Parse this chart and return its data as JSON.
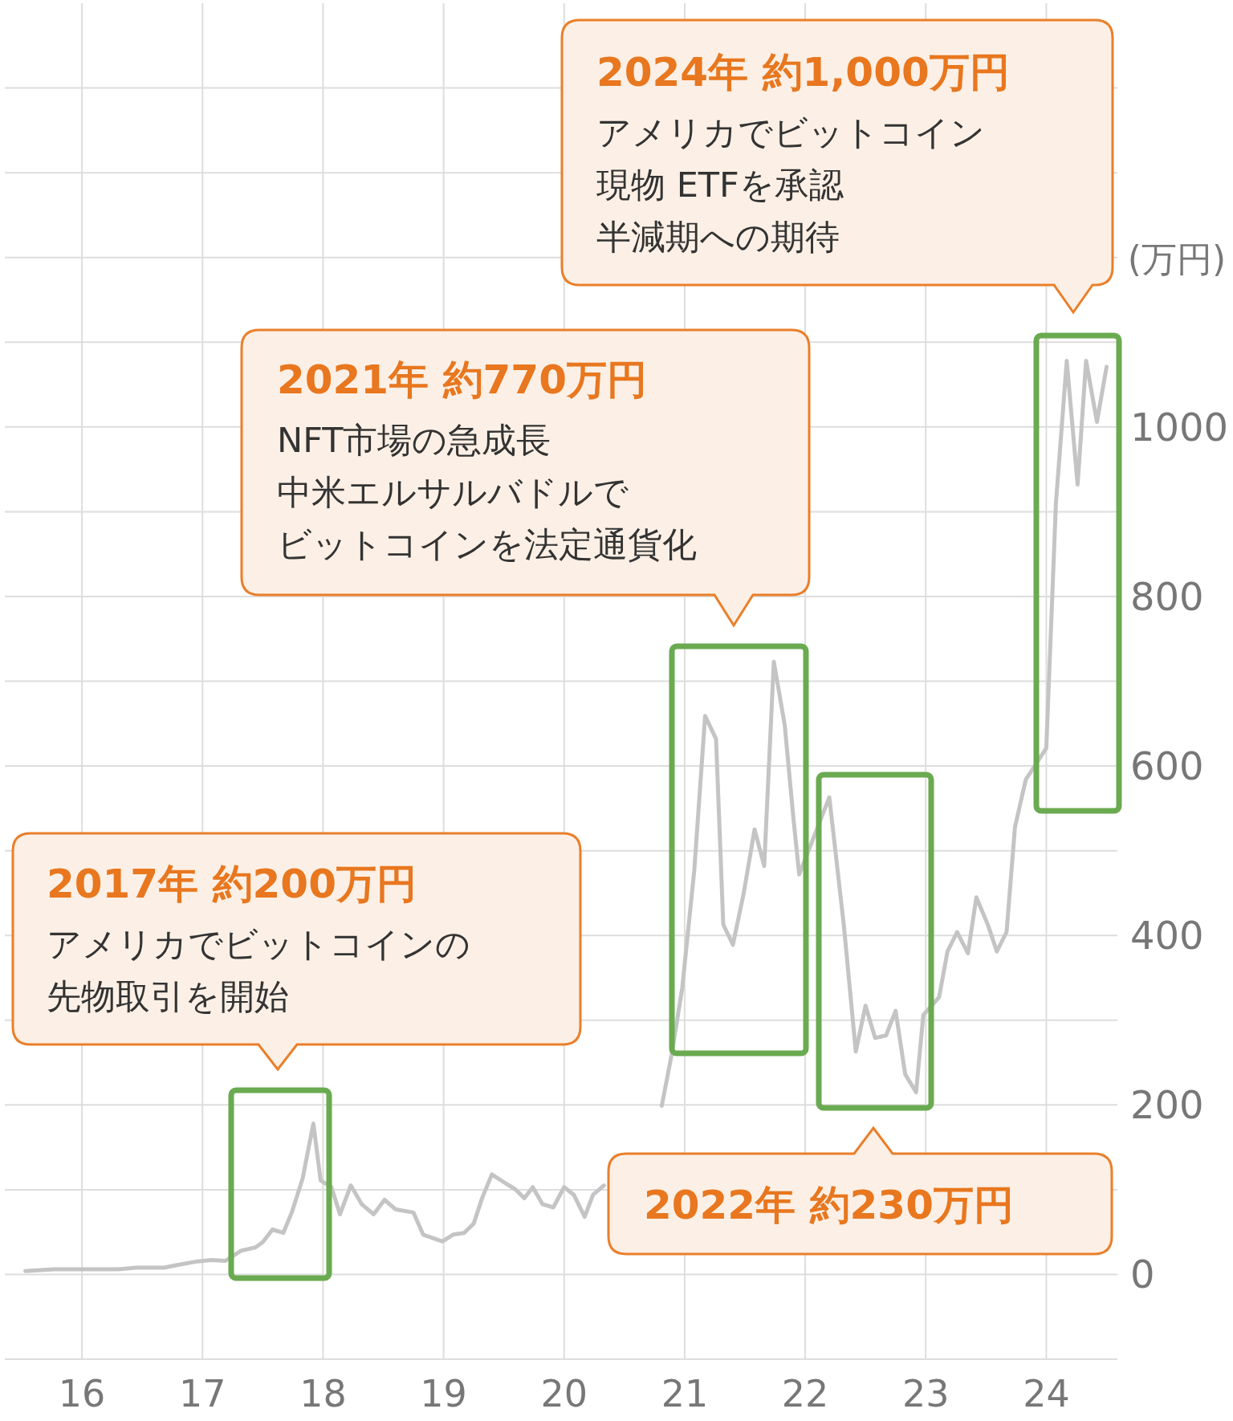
{
  "chart_data": {
    "type": "line",
    "ylabel": "(万円)",
    "annotations": [
      "2017年 約200万円",
      "アメリカでビットコインの",
      "先物取引を開始",
      "2021年 約770万円",
      "NFT市場の急成長",
      "中米エルサルバドルで",
      "ビットコインを法定通貨化",
      "2022年 約230万円",
      "2024年 約1,000万円",
      "アメリカでビットコイン",
      "現物 ETFを承認",
      "半減期への期待"
    ],
    "xlim": [
      2015.36,
      2024.59
    ],
    "xticks": [
      {
        "value": 2016,
        "label": "16"
      },
      {
        "value": 2017,
        "label": "17"
      },
      {
        "value": 2018,
        "label": "18"
      },
      {
        "value": 2019,
        "label": "19"
      },
      {
        "value": 2020,
        "label": "20"
      },
      {
        "value": 2021,
        "label": "21"
      },
      {
        "value": 2022,
        "label": "22"
      },
      {
        "value": 2023,
        "label": "23"
      },
      {
        "value": 2024,
        "label": "24"
      }
    ],
    "ylim": [
      -100,
      1500
    ],
    "yticks": [
      {
        "value": -100,
        "label": null
      },
      0,
      {
        "value": 100,
        "label": null
      },
      200,
      {
        "value": 300,
        "label": null
      },
      400,
      {
        "value": 500,
        "label": null
      },
      600,
      {
        "value": 700,
        "label": null
      },
      800,
      {
        "value": 900,
        "label": null
      },
      1000,
      {
        "value": 1100,
        "label": null
      },
      {
        "value": 1200,
        "label": null
      },
      {
        "value": 1300,
        "label": null
      },
      {
        "value": 1400,
        "label": null
      }
    ],
    "grid": true,
    "series": [
      {
        "color": "#c4c4c4",
        "x": [
          2015.53,
          2015.77,
          2016.3,
          2016.45,
          2016.68,
          2016.79,
          2016.94,
          2017.07,
          2017.19,
          2017.32,
          2017.44,
          2017.5,
          2017.58,
          2017.67,
          2017.74,
          2017.83,
          2017.92,
          2017.98,
          2018.07,
          2018.14,
          2018.23,
          2018.32,
          2018.42,
          2018.51,
          2018.6,
          2018.75,
          2018.83,
          2018.99,
          2019.08,
          2019.17,
          2019.25,
          2019.32,
          2019.4,
          2019.52,
          2019.59,
          2019.67,
          2019.74,
          2019.82,
          2019.91,
          2020.0,
          2020.08,
          2020.17,
          2020.24,
          2020.33,
          2020.74,
          2020.81,
          2020.89,
          2020.98,
          2021.08,
          2021.17,
          2021.26,
          2021.32,
          2021.4,
          2021.49,
          2021.58,
          2021.66,
          2021.74,
          2021.83,
          2021.9,
          2021.95,
          2022.2,
          2022.32,
          2022.42,
          2022.5,
          2022.58,
          2022.67,
          2022.75,
          2022.83,
          2022.92,
          2022.98,
          2023.11,
          2023.18,
          2023.26,
          2023.35,
          2023.42,
          2023.52,
          2023.59,
          2023.67,
          2023.74,
          2023.83,
          2024.0,
          2024.08,
          2024.17,
          2024.26,
          2024.33,
          2024.42,
          2024.5
        ],
        "values": [
          4,
          6,
          6,
          8,
          8,
          11,
          15,
          17,
          16,
          28,
          32,
          38,
          53,
          49,
          73,
          113,
          178,
          111,
          103,
          71,
          105,
          83,
          71,
          88,
          77,
          73,
          47,
          39,
          47,
          49,
          60,
          90,
          118,
          107,
          101,
          90,
          103,
          83,
          79,
          103,
          94,
          68,
          94,
          105,
          null,
          199,
          258,
          338,
          477,
          659,
          632,
          413,
          389,
          450,
          525,
          482,
          723,
          648,
          541,
          472,
          563,
          413,
          263,
          317,
          279,
          282,
          311,
          236,
          215,
          306,
          327,
          381,
          404,
          379,
          445,
          411,
          381,
          404,
          528,
          584,
          621,
          910,
          1078,
          932,
          1078,
          1006,
          1071
        ]
      }
    ]
  }
}
